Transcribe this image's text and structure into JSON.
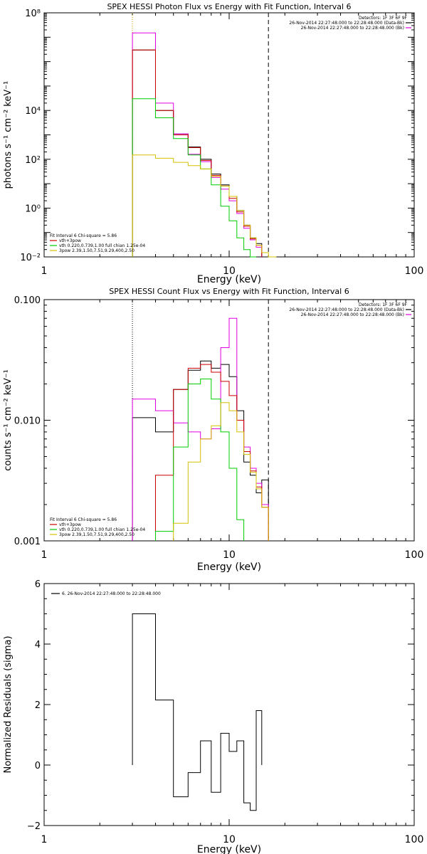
{
  "chart_data": [
    {
      "type": "line",
      "title": "SPEX HESSI Photon Flux vs Energy with Fit Function, Interval 6",
      "xlabel": "Energy (keV)",
      "ylabel": "photons s⁻¹ cm⁻² keV⁻¹",
      "xscale": "log",
      "yscale": "log",
      "xlim": [
        1,
        100
      ],
      "ylim": [
        0.01,
        100000000
      ],
      "x_ticks": [
        {
          "value": 1,
          "label": "1"
        },
        {
          "value": 10,
          "label": "10"
        },
        {
          "value": 100,
          "label": "100"
        }
      ],
      "y_ticks": [
        {
          "value": 0.01,
          "label": "10⁻²"
        },
        {
          "value": 1,
          "label": "10⁰"
        },
        {
          "value": 100,
          "label": "10²"
        },
        {
          "value": 10000,
          "label": "10⁴"
        },
        {
          "value": 100000000,
          "label": "10⁸"
        }
      ],
      "vlines": [
        {
          "x": 3.0,
          "style": "dotted",
          "color": "#cc9900"
        },
        {
          "x": 16.3,
          "style": "dashed",
          "color": "#000000"
        }
      ],
      "bin_edges": [
        3.0,
        4.0,
        5.0,
        6.0,
        7.0,
        8.0,
        9.0,
        10.0,
        11.0,
        12.0,
        13.0,
        14.0,
        15.0,
        16.3,
        18.0
      ],
      "series": [
        {
          "name": "vth+3pow",
          "color": "#000000",
          "values": [
            3000000,
            10000,
            1100,
            320,
            100,
            25,
            9,
            3,
            0.8,
            0.2,
            0.06,
            0.035,
            null,
            null
          ]
        },
        {
          "name": "",
          "color": "#e000e0",
          "values": [
            15000000,
            20000,
            1100,
            160,
            80,
            18,
            6,
            2,
            0.6,
            0.15,
            0.05,
            0.025,
            null,
            null
          ]
        },
        {
          "name": "vth+3pow",
          "color": "#cc0000",
          "values": [
            3000000,
            10000,
            1000,
            300,
            90,
            22,
            8,
            2.5,
            0.7,
            0.18,
            0.055,
            0.03,
            null,
            null
          ]
        },
        {
          "name": "vth 0.220,0.739,1.00  full chian 1.25e-04",
          "color": "#00cc00",
          "values": [
            30000,
            5000,
            700,
            150,
            40,
            9,
            1.2,
            0.3,
            0.06,
            0.02,
            0.01,
            null,
            null,
            null
          ]
        },
        {
          "name": "3pow 2.39,1.50,7.51,9.29,400,2.50",
          "color": "#d4c000",
          "values": [
            150,
            110,
            75,
            55,
            40,
            20,
            8,
            3,
            0.8,
            0.2,
            0.06,
            0.03,
            0.015,
            0.01
          ]
        }
      ],
      "legend": {
        "header": "Detectors: 1F 3F 6F 9F",
        "entries": [
          {
            "label": "26-Nov-2014 22:27:48.000 to 22:28:48.000 (Data-Bk)",
            "color": "#000000"
          },
          {
            "label": "26-Nov-2014 22:27:48.000 to 22:28:48.000 (Bk)",
            "color": "#e000e0"
          }
        ],
        "placement": "top-right"
      },
      "fit_legend": {
        "header": "Fit Interval 6   Chi-square = 5.86",
        "entries": [
          {
            "label": "vth+3pow",
            "color": "#cc0000"
          },
          {
            "label": "vth 0.220,0.739,1.00  full chian 1.25e-04",
            "color": "#00cc00"
          },
          {
            "label": "3pow 2.39,1.50,7.51,9.29,400,2.50",
            "color": "#d4c000"
          }
        ],
        "placement": "bottom-left"
      }
    },
    {
      "type": "line",
      "title": "SPEX HESSI Count Flux vs Energy with Fit Function, Interval 6",
      "xlabel": "Energy (keV)",
      "ylabel": "counts s⁻¹ cm⁻² keV⁻¹",
      "xscale": "log",
      "yscale": "log",
      "xlim": [
        1,
        100
      ],
      "ylim": [
        0.001,
        0.1
      ],
      "x_ticks": [
        {
          "value": 1,
          "label": "1"
        },
        {
          "value": 10,
          "label": "10"
        },
        {
          "value": 100,
          "label": "100"
        }
      ],
      "y_ticks": [
        {
          "value": 0.001,
          "label": "0.001"
        },
        {
          "value": 0.01,
          "label": "0.010"
        },
        {
          "value": 0.1,
          "label": "0.100"
        }
      ],
      "vlines": [
        {
          "x": 3.0,
          "style": "dotted",
          "color": "#000000"
        },
        {
          "x": 16.3,
          "style": "dashed",
          "color": "#000000"
        }
      ],
      "bin_edges": [
        3.0,
        4.0,
        5.0,
        6.0,
        7.0,
        8.0,
        9.0,
        10.0,
        11.0,
        12.0,
        13.0,
        14.0,
        15.0,
        16.3,
        18.0
      ],
      "series": [
        {
          "name": "",
          "color": "#000000",
          "values": [
            0.0105,
            0.008,
            0.018,
            0.026,
            0.031,
            0.027,
            0.029,
            0.023,
            0.012,
            0.0045,
            0.0035,
            0.0025,
            0.0032,
            null
          ]
        },
        {
          "name": "",
          "color": "#e000e0",
          "values": [
            0.015,
            0.012,
            0.0095,
            0.008,
            0.007,
            0.0085,
            0.04,
            0.07,
            0.01,
            0.006,
            0.004,
            0.003,
            0.002,
            null
          ]
        },
        {
          "name": "",
          "color": "#cc0000",
          "values": [
            null,
            0.0035,
            0.018,
            0.027,
            0.029,
            0.025,
            0.021,
            0.016,
            0.01,
            0.0055,
            0.0038,
            0.0028,
            0.0019,
            null
          ]
        },
        {
          "name": "",
          "color": "#00cc00",
          "values": [
            null,
            0.0012,
            0.006,
            0.02,
            0.022,
            0.015,
            0.008,
            0.004,
            0.0015,
            null,
            null,
            null,
            null,
            null
          ]
        },
        {
          "name": "",
          "color": "#d4c000",
          "values": [
            null,
            null,
            0.0014,
            0.0045,
            0.007,
            0.009,
            0.014,
            0.012,
            0.008,
            0.0052,
            0.0037,
            0.0027,
            0.0019,
            null
          ]
        }
      ],
      "legend": {
        "header": "Detectors: 1F 3F 6F 9F",
        "entries": [
          {
            "label": "26-Nov-2014 22:27:48.000 to 22:28:48.000 (Data-Bk)",
            "color": "#000000"
          },
          {
            "label": "26-Nov-2014 22:27:48.000 to 22:28:48.000 (Bk)",
            "color": "#e000e0"
          }
        ],
        "placement": "top-right"
      },
      "fit_legend": {
        "header": "Fit Interval 6   Chi-square = 5.86",
        "entries": [
          {
            "label": "vth+3pow",
            "color": "#cc0000"
          },
          {
            "label": "vth 0.220,0.739,1.00  full chian 1.25e-04",
            "color": "#00cc00"
          },
          {
            "label": "3pow 2.39,1.50,7.51,9.29,400,2.50",
            "color": "#d4c000"
          }
        ],
        "placement": "bottom-left"
      }
    },
    {
      "type": "line",
      "title": "",
      "xlabel": "Energy (keV)",
      "ylabel": "Normalized Residuals (sigma)",
      "xscale": "log",
      "yscale": "linear",
      "xlim": [
        1,
        100
      ],
      "ylim": [
        -2,
        6
      ],
      "x_ticks": [
        {
          "value": 1,
          "label": "1"
        },
        {
          "value": 10,
          "label": "10"
        },
        {
          "value": 100,
          "label": "100"
        }
      ],
      "y_ticks": [
        {
          "value": -2,
          "label": "−2"
        },
        {
          "value": 0,
          "label": "0"
        },
        {
          "value": 2,
          "label": "2"
        },
        {
          "value": 4,
          "label": "4"
        },
        {
          "value": 6,
          "label": "6"
        }
      ],
      "bin_edges": [
        3.0,
        4.0,
        5.0,
        6.0,
        7.0,
        8.0,
        9.0,
        10.0,
        11.0,
        12.0,
        13.0,
        14.0,
        15.0,
        16.3
      ],
      "series": [
        {
          "name": "",
          "color": "#000000",
          "values": [
            5.0,
            2.15,
            -1.05,
            -0.25,
            0.8,
            -0.9,
            1.05,
            0.45,
            0.8,
            -1.25,
            -1.5,
            1.8,
            null
          ]
        }
      ],
      "legend": {
        "entries": [
          {
            "label": "6. 26-Nov-2014 22:27:48.000 to 22:28:48.000",
            "color": "#000000"
          }
        ],
        "placement": "top-left"
      }
    }
  ]
}
